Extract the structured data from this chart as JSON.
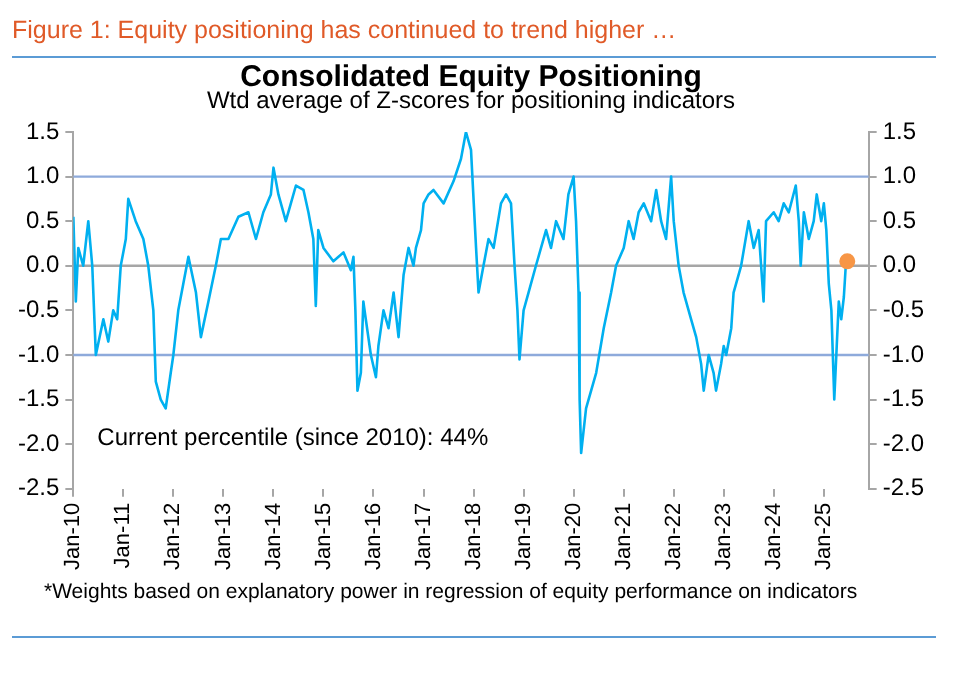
{
  "chart_data": {
    "type": "line",
    "title": "Figure 1: Equity positioning has continued to trend higher …",
    "subtitle": "Consolidated Equity Positioning",
    "annotations": [
      "Wtd average of Z-scores for positioning indicators",
      "Current percentile (since 2010): 44%",
      "*Weights based on explanatory power in regression of equity performance on indicators"
    ],
    "series": [
      {
        "color": "#00b0f0",
        "marker": "none",
        "x": [
          "2010-01-01",
          "2010-01-19",
          "2010-02-06",
          "2010-03-14",
          "2010-04-20",
          "2010-05-19",
          "2010-06-14",
          "2010-08-08",
          "2010-09-13",
          "2010-10-19",
          "2010-11-17",
          "2010-12-13",
          "2011-01-19",
          "2011-02-06",
          "2011-04-01",
          "2011-05-27",
          "2011-07-02",
          "2011-08-08",
          "2011-08-26",
          "2011-10-01",
          "2011-11-06",
          "2011-12-13",
          "2012-01-01",
          "2012-02-06",
          "2012-03-14",
          "2012-04-20",
          "2012-06-14",
          "2012-07-20",
          "2012-09-13",
          "2012-11-06",
          "2012-12-13",
          "2013-02-06",
          "2013-04-20",
          "2013-07-02",
          "2013-08-26",
          "2013-10-19",
          "2013-12-13",
          "2014-01-01",
          "2014-02-06",
          "2014-04-01",
          "2014-05-08",
          "2014-06-14",
          "2014-08-08",
          "2014-09-13",
          "2014-10-19",
          "2014-11-06",
          "2014-11-24",
          "2015-01-01",
          "2015-03-14",
          "2015-05-27",
          "2015-07-20",
          "2015-08-08",
          "2015-08-22",
          "2015-09-06",
          "2015-10-01",
          "2015-10-19",
          "2015-11-06",
          "2015-12-13",
          "2016-01-19",
          "2016-02-06",
          "2016-03-14",
          "2016-04-20",
          "2016-05-27",
          "2016-07-02",
          "2016-08-08",
          "2016-09-13",
          "2016-10-19",
          "2016-11-06",
          "2016-12-13",
          "2017-01-01",
          "2017-02-06",
          "2017-03-14",
          "2017-05-27",
          "2017-08-08",
          "2017-10-01",
          "2017-11-06",
          "2017-12-13",
          "2018-01-19",
          "2018-02-06",
          "2018-03-14",
          "2018-04-20",
          "2018-05-27",
          "2018-07-20",
          "2018-08-26",
          "2018-10-01",
          "2018-10-27",
          "2018-11-17",
          "2018-12-02",
          "2019-01-01",
          "2019-02-06",
          "2019-04-01",
          "2019-06-14",
          "2019-07-20",
          "2019-08-26",
          "2019-10-19",
          "2019-11-24",
          "2020-01-01",
          "2020-01-19",
          "2020-02-06",
          "2020-02-14",
          "2020-02-25",
          "2020-04-01",
          "2020-06-14",
          "2020-08-08",
          "2020-10-01",
          "2020-11-06",
          "2021-01-01",
          "2021-02-06",
          "2021-03-14",
          "2021-04-20",
          "2021-05-27",
          "2021-07-20",
          "2021-08-26",
          "2021-10-01",
          "2021-11-06",
          "2021-12-13",
          "2022-01-01",
          "2022-02-06",
          "2022-03-14",
          "2022-05-08",
          "2022-06-14",
          "2022-07-20",
          "2022-08-08",
          "2022-09-13",
          "2022-10-19",
          "2022-11-06",
          "2022-12-13",
          "2023-01-01",
          "2023-01-19",
          "2023-02-25",
          "2023-03-14",
          "2023-05-08",
          "2023-07-02",
          "2023-08-08",
          "2023-09-13",
          "2023-10-01",
          "2023-10-19",
          "2023-11-06",
          "2024-01-01",
          "2024-02-06",
          "2024-03-14",
          "2024-04-20",
          "2024-06-10",
          "2024-07-02",
          "2024-07-16",
          "2024-08-08",
          "2024-09-13",
          "2024-10-19",
          "2024-11-10",
          "2024-12-13",
          "2025-01-01",
          "2025-01-19",
          "2025-02-06",
          "2025-02-25",
          "2025-03-18",
          "2025-04-05",
          "2025-04-20",
          "2025-05-08",
          "2025-05-27",
          "2025-06-10"
        ],
        "values": [
          0.55,
          -0.4,
          0.2,
          0.0,
          0.5,
          0.0,
          -1.0,
          -0.6,
          -0.85,
          -0.5,
          -0.6,
          0.0,
          0.3,
          0.75,
          0.5,
          0.3,
          0.0,
          -0.5,
          -1.3,
          -1.5,
          -1.6,
          -1.2,
          -1.0,
          -0.5,
          -0.2,
          0.1,
          -0.3,
          -0.8,
          -0.4,
          0.0,
          0.3,
          0.3,
          0.55,
          0.6,
          0.3,
          0.6,
          0.8,
          1.1,
          0.8,
          0.5,
          0.7,
          0.9,
          0.85,
          0.6,
          0.3,
          -0.45,
          0.4,
          0.2,
          0.05,
          0.15,
          -0.05,
          0.1,
          -0.5,
          -1.4,
          -1.2,
          -0.4,
          -0.6,
          -1.0,
          -1.25,
          -0.9,
          -0.5,
          -0.7,
          -0.3,
          -0.8,
          -0.1,
          0.2,
          0.0,
          0.2,
          0.4,
          0.7,
          0.8,
          0.85,
          0.7,
          0.95,
          1.2,
          1.5,
          1.3,
          0.2,
          -0.3,
          0.0,
          0.3,
          0.2,
          0.7,
          0.8,
          0.7,
          0.0,
          -0.5,
          -1.05,
          -0.5,
          -0.3,
          0.0,
          0.4,
          0.2,
          0.5,
          0.3,
          0.8,
          1.0,
          0.5,
          -0.3,
          -1.5,
          -2.1,
          -1.6,
          -1.2,
          -0.7,
          -0.3,
          0.0,
          0.2,
          0.5,
          0.3,
          0.6,
          0.7,
          0.5,
          0.85,
          0.5,
          0.3,
          1.0,
          0.5,
          0.0,
          -0.3,
          -0.6,
          -0.8,
          -1.1,
          -1.4,
          -1.0,
          -1.2,
          -1.4,
          -1.1,
          -0.9,
          -1.0,
          -0.7,
          -0.3,
          0.0,
          0.5,
          0.2,
          0.4,
          0.0,
          -0.4,
          0.5,
          0.6,
          0.5,
          0.7,
          0.6,
          0.9,
          0.5,
          0.0,
          0.6,
          0.3,
          0.5,
          0.8,
          0.5,
          0.7,
          0.4,
          -0.2,
          -0.5,
          -1.5,
          -0.9,
          -0.4,
          -0.6,
          -0.35,
          0.0
        ]
      },
      {
        "type": "scatter",
        "marker": "circle",
        "color": "#f79646",
        "x": [
          "2025-06-21"
        ],
        "values": [
          0.05
        ]
      }
    ],
    "xlim": [
      "2010-01-01",
      "2025-11-24"
    ],
    "xticks": [
      {
        "value": "2010-01-01",
        "label": "Jan-10"
      },
      {
        "value": "2011-01-01",
        "label": "Jan-11"
      },
      {
        "value": "2012-01-01",
        "label": "Jan-12"
      },
      {
        "value": "2013-01-01",
        "label": "Jan-13"
      },
      {
        "value": "2014-01-01",
        "label": "Jan-14"
      },
      {
        "value": "2015-01-01",
        "label": "Jan-15"
      },
      {
        "value": "2016-01-01",
        "label": "Jan-16"
      },
      {
        "value": "2017-01-01",
        "label": "Jan-17"
      },
      {
        "value": "2018-01-01",
        "label": "Jan-18"
      },
      {
        "value": "2019-01-01",
        "label": "Jan-19"
      },
      {
        "value": "2020-01-01",
        "label": "Jan-20"
      },
      {
        "value": "2021-01-01",
        "label": "Jan-21"
      },
      {
        "value": "2022-01-01",
        "label": "Jan-22"
      },
      {
        "value": "2023-01-01",
        "label": "Jan-23"
      },
      {
        "value": "2024-01-01",
        "label": "Jan-24"
      },
      {
        "value": "2025-01-01",
        "label": "Jan-25"
      }
    ],
    "ylim": [
      -2.5,
      1.5
    ],
    "yticks": [
      {
        "value": -2.5,
        "label": "-2.5"
      },
      {
        "value": -2,
        "label": "-2.0"
      },
      {
        "value": -1.5,
        "label": "-1.5"
      },
      {
        "value": -1,
        "label": "-1.0"
      },
      {
        "value": -0.5,
        "label": "-0.5"
      },
      {
        "value": 0,
        "label": "0.0"
      },
      {
        "value": 0.5,
        "label": "0.5"
      },
      {
        "value": 1,
        "label": "1.0"
      },
      {
        "value": 1.5,
        "label": "1.5"
      }
    ],
    "y2lim": [
      -2.5,
      1.5
    ],
    "y2ticks": [
      {
        "value": -2.5,
        "label": "-2.5"
      },
      {
        "value": -2,
        "label": "-2.0"
      },
      {
        "value": -1.5,
        "label": "-1.5"
      },
      {
        "value": -1,
        "label": "-1.0"
      },
      {
        "value": -0.5,
        "label": "-0.5"
      },
      {
        "value": 0,
        "label": "0.0"
      },
      {
        "value": 0.5,
        "label": "0.5"
      },
      {
        "value": 1,
        "label": "1.0"
      },
      {
        "value": 1.5,
        "label": "1.5"
      }
    ],
    "ref_lines": [
      {
        "axis": "y",
        "value": 1,
        "color": "#8eaadb"
      },
      {
        "axis": "y",
        "value": -1,
        "color": "#8eaadb"
      },
      {
        "axis": "y",
        "value": 0,
        "color": "#a6a6a6"
      }
    ],
    "grid": false,
    "legend": false,
    "line_style": "solid"
  }
}
